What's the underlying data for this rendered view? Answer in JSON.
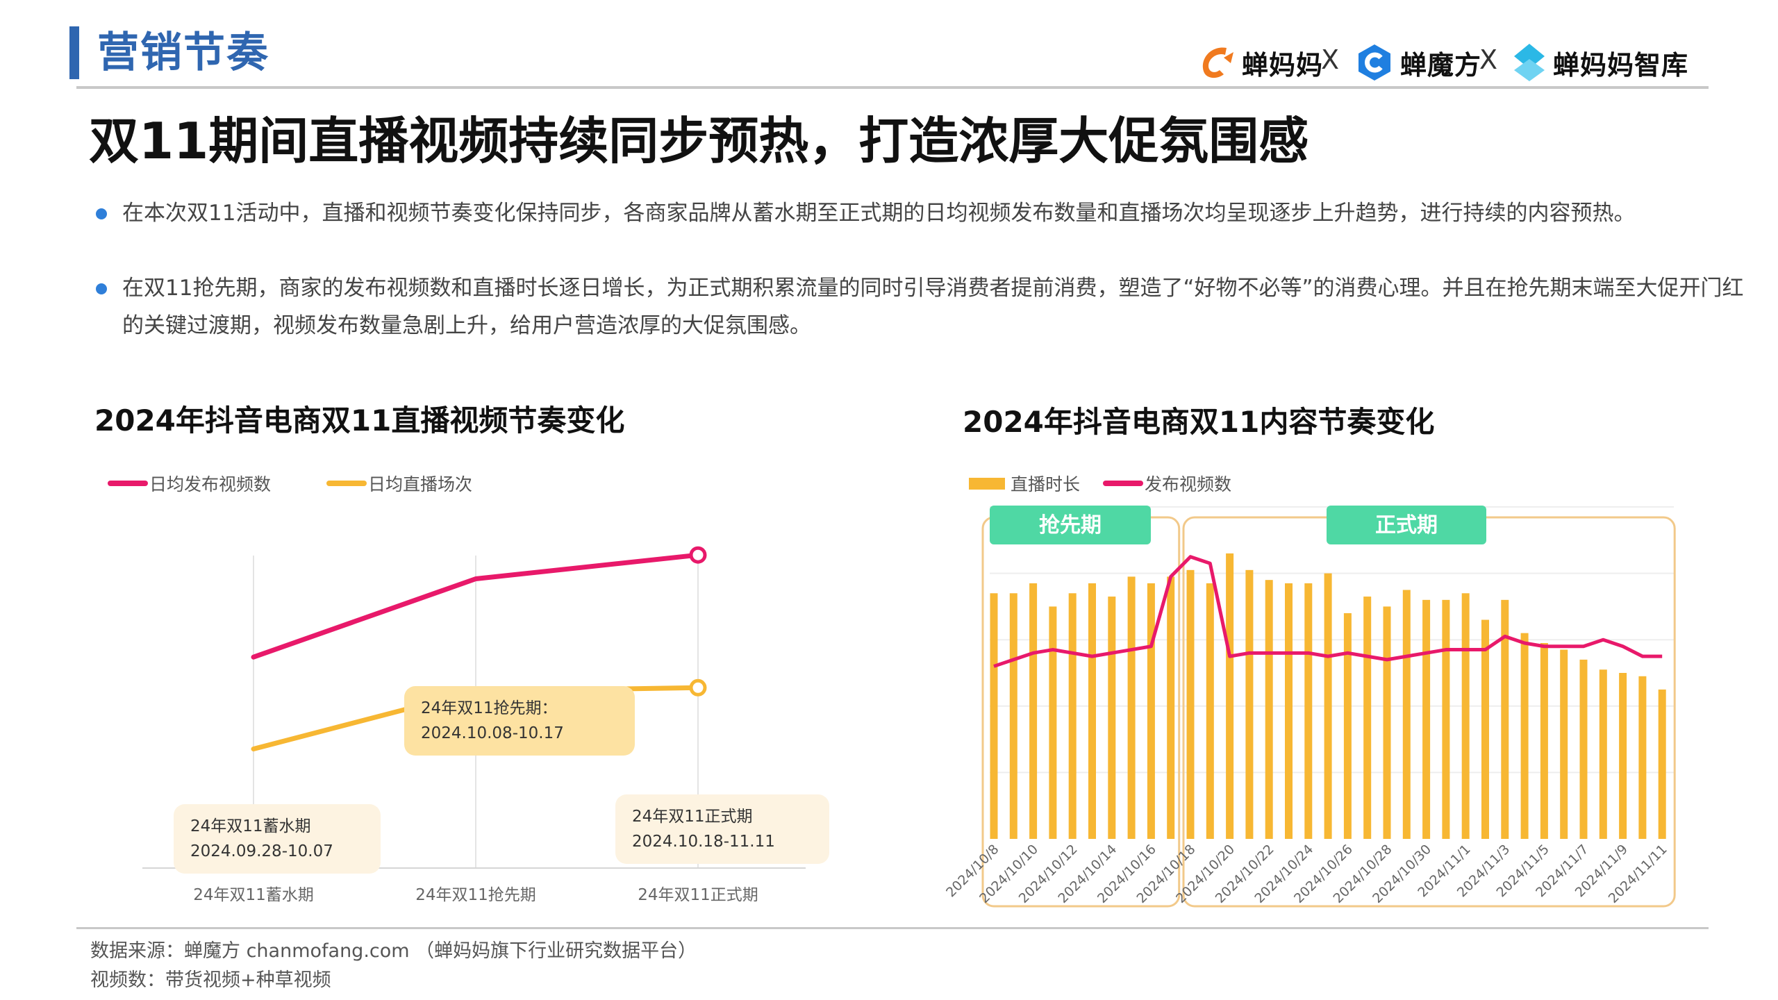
{
  "header": {
    "section_title": "营销节奏",
    "brands": [
      {
        "name": "蝉妈妈",
        "icon": "chanmama-logo-icon",
        "color": "#f07a1f"
      },
      {
        "name": "蝉魔方",
        "icon": "chanmofang-logo-icon",
        "color": "#1f7fe0"
      },
      {
        "name": "蝉妈妈智库",
        "icon": "chanmama-zhiku-logo-icon",
        "color": "#2bb8e6"
      }
    ],
    "separator": "X"
  },
  "headline": "双11期间直播视频持续同步预热，打造浓厚大促氛围感",
  "bullets": [
    "在本次双11活动中，直播和视频节奏变化保持同步，各商家品牌从蓄水期至正式期的日均视频发布数量和直播场次均呈现逐步上升趋势，进行持续的内容预热。",
    "在双11抢先期，商家的发布视频数和直播时长逐日增长，为正式期积累流量的同时引导消费者提前消费，塑造了“好物不必等”的消费心理。并且在抢先期末端至大促开门红的关键过渡期，视频发布数量急剧上升，给用户营造浓厚的大促氛围感。"
  ],
  "colors": {
    "accent": "#2f66b0",
    "video_line": "#e8196a",
    "live_line": "#f7b733",
    "bar": "#f7b733",
    "phase_label_bg": "#4fd8a4",
    "phase_frame": "#f2c98a"
  },
  "chart_data": [
    {
      "type": "line",
      "title": "2024年抖音电商双11直播视频节奏变化",
      "categories": [
        "24年双11蓄水期",
        "24年双11抢先期",
        "24年双11正式期"
      ],
      "series": [
        {
          "name": "日均发布视频数",
          "values": [
            0.62,
            0.85,
            0.92
          ]
        },
        {
          "name": "日均直播场次",
          "values": [
            0.35,
            0.52,
            0.53
          ]
        }
      ],
      "ylim": [
        0,
        1
      ],
      "grid": false,
      "legend": "top-left",
      "annotations": [
        {
          "title": "24年双11蓄水期",
          "range": "2024.09.28-10.07"
        },
        {
          "title": "24年双11抢先期：",
          "range": "2024.10.08-10.17"
        },
        {
          "title": "24年双11正式期",
          "range": "2024.10.18-11.11"
        }
      ]
    },
    {
      "type": "bar",
      "title": "2024年抖音电商双11内容节奏变化",
      "categories": [
        "2024/10/8",
        "2024/10/9",
        "2024/10/10",
        "2024/10/11",
        "2024/10/12",
        "2024/10/13",
        "2024/10/14",
        "2024/10/15",
        "2024/10/16",
        "2024/10/17",
        "2024/10/18",
        "2024/10/19",
        "2024/10/20",
        "2024/10/21",
        "2024/10/22",
        "2024/10/23",
        "2024/10/24",
        "2024/10/25",
        "2024/10/26",
        "2024/10/27",
        "2024/10/28",
        "2024/10/29",
        "2024/10/30",
        "2024/10/31",
        "2024/11/1",
        "2024/11/2",
        "2024/11/3",
        "2024/11/4",
        "2024/11/5",
        "2024/11/6",
        "2024/11/7",
        "2024/11/8",
        "2024/11/9",
        "2024/11/10",
        "2024/11/11"
      ],
      "tick_labels": [
        "2024/10/8",
        "2024/10/10",
        "2024/10/12",
        "2024/10/14",
        "2024/10/16",
        "2024/10/18",
        "2024/10/20",
        "2024/10/22",
        "2024/10/24",
        "2024/10/26",
        "2024/10/28",
        "2024/10/30",
        "2024/11/1",
        "2024/11/3",
        "2024/11/5",
        "2024/11/7",
        "2024/11/9",
        "2024/11/11"
      ],
      "series": [
        {
          "name": "直播时长",
          "kind": "bar",
          "values": [
            0.74,
            0.74,
            0.77,
            0.7,
            0.74,
            0.77,
            0.73,
            0.79,
            0.77,
            0.79,
            0.81,
            0.77,
            0.86,
            0.81,
            0.78,
            0.77,
            0.77,
            0.8,
            0.68,
            0.73,
            0.7,
            0.75,
            0.72,
            0.72,
            0.74,
            0.66,
            0.72,
            0.62,
            0.59,
            0.57,
            0.54,
            0.51,
            0.5,
            0.49,
            0.45
          ]
        },
        {
          "name": "发布视频数",
          "kind": "line",
          "values": [
            0.52,
            0.54,
            0.56,
            0.57,
            0.56,
            0.55,
            0.56,
            0.57,
            0.58,
            0.79,
            0.85,
            0.83,
            0.55,
            0.56,
            0.56,
            0.56,
            0.56,
            0.55,
            0.56,
            0.55,
            0.54,
            0.55,
            0.56,
            0.57,
            0.57,
            0.57,
            0.61,
            0.59,
            0.58,
            0.58,
            0.58,
            0.6,
            0.58,
            0.55,
            0.55
          ]
        }
      ],
      "ylim": [
        0,
        1
      ],
      "grid": true,
      "legend": "top-left",
      "phases": [
        {
          "label": "抢先期",
          "from": "2024/10/8",
          "to": "2024/10/17"
        },
        {
          "label": "正式期",
          "from": "2024/10/18",
          "to": "2024/11/11"
        }
      ]
    }
  ],
  "footer": {
    "source": "数据来源：蝉魔方 chanmofang.com （蝉妈妈旗下行业研究数据平台）",
    "note": "视频数：带货视频+种草视频"
  }
}
